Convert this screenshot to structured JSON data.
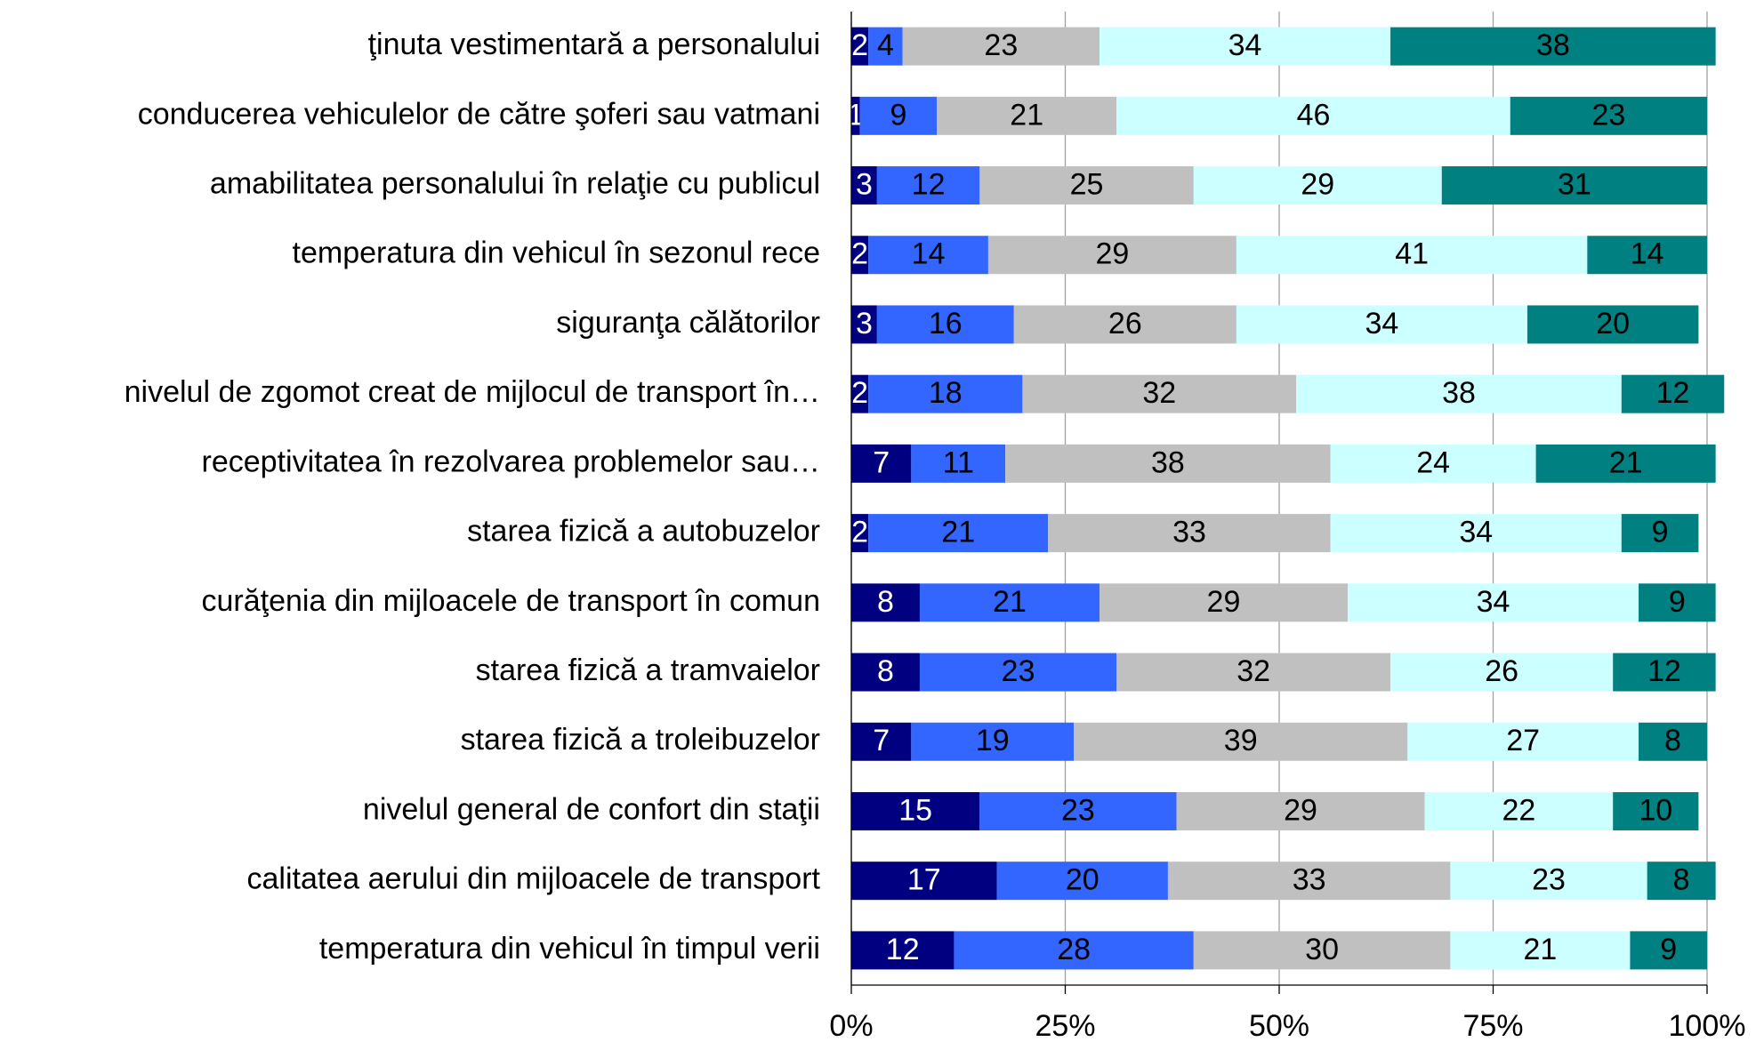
{
  "chart_data": {
    "type": "stacked_bar_horizontal",
    "categories": [
      "ţinuta vestimentară a personalului",
      "conducerea vehiculelor de către şoferi sau vatmani",
      "amabilitatea personalului în relaţie cu publicul",
      "temperatura din vehicul în sezonul rece ",
      "siguranţa călătorilor",
      "nivelul de zgomot creat de mijlocul de transport în…",
      "receptivitatea în rezolvarea problemelor sau…",
      "starea fizică a autobuzelor",
      "curăţenia din mijloacele de transport în comun",
      "starea fizică a tramvaielor",
      "starea fizică a troleibuzelor",
      "nivelul general de confort din staţii",
      "calitatea aerului din mijloacele de transport",
      "temperatura din vehicul în timpul verii"
    ],
    "series": [
      {
        "color": "#000080",
        "label_color": "#ffffff",
        "values": [
          2,
          1,
          3,
          2,
          3,
          2,
          7,
          2,
          8,
          8,
          7,
          15,
          17,
          12
        ]
      },
      {
        "color": "#3366ff",
        "label_color": "#000000",
        "values": [
          4,
          9,
          12,
          14,
          16,
          18,
          11,
          21,
          21,
          23,
          19,
          23,
          20,
          28
        ]
      },
      {
        "color": "#c0c0c0",
        "label_color": "#000000",
        "values": [
          23,
          21,
          25,
          29,
          26,
          32,
          38,
          33,
          29,
          32,
          39,
          29,
          33,
          30
        ]
      },
      {
        "color": "#ccffff",
        "label_color": "#000000",
        "values": [
          34,
          46,
          29,
          41,
          34,
          38,
          24,
          34,
          34,
          26,
          27,
          22,
          23,
          21
        ]
      },
      {
        "color": "#008080",
        "label_color": "#000000",
        "values": [
          38,
          23,
          31,
          14,
          20,
          12,
          21,
          9,
          9,
          12,
          8,
          10,
          8,
          9
        ]
      }
    ],
    "xlim": [
      0,
      100
    ],
    "xticks": [
      {
        "value": 0,
        "label": "0%"
      },
      {
        "value": 25,
        "label": "25%"
      },
      {
        "value": 50,
        "label": "50%"
      },
      {
        "value": 75,
        "label": "75%"
      },
      {
        "value": 100,
        "label": "100%"
      }
    ],
    "grid": true
  }
}
